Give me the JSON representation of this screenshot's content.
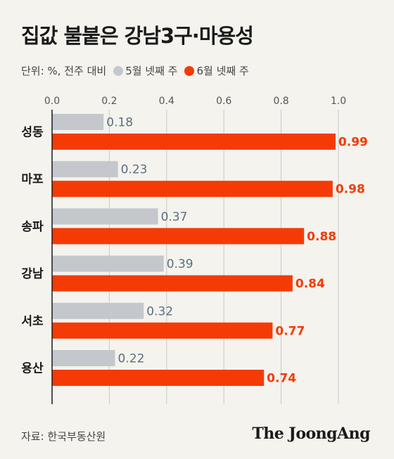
{
  "title": "집값 불붙은 강남3구·마용성",
  "legend": {
    "unit": "단위: %, 전주 대비",
    "series_a": "5월 넷째 주",
    "series_b": "6월 넷째 주"
  },
  "colors": {
    "series_a": "#c4c8cc",
    "series_b": "#f43b06",
    "label_a": "#5b6e7d",
    "label_b": "#f43b06",
    "axis": "#1a1a1a",
    "grid": "#c9c9c9"
  },
  "chart_data": {
    "type": "bar",
    "orientation": "horizontal",
    "categories": [
      "성동",
      "마포",
      "송파",
      "강남",
      "서초",
      "용산"
    ],
    "series": [
      {
        "name": "5월 넷째 주",
        "values": [
          0.18,
          0.23,
          0.37,
          0.39,
          0.32,
          0.22
        ],
        "labels": [
          "0.18",
          "0.23",
          "0.37",
          "0.39",
          "0.32",
          "0.22"
        ]
      },
      {
        "name": "6월 넷째 주",
        "values": [
          0.99,
          0.98,
          0.88,
          0.84,
          0.77,
          0.74
        ],
        "labels": [
          "0.99",
          "0.98",
          "0.88",
          "0.84",
          "0.77",
          "0.74"
        ]
      }
    ],
    "xlim": [
      0,
      1.0
    ],
    "xticks": [
      "0.0",
      "0.2",
      "0.4",
      "0.6",
      "0.8",
      "1.0"
    ],
    "xtick_values": [
      0,
      0.2,
      0.4,
      0.6,
      0.8,
      1.0
    ],
    "grid": true,
    "legend_position": "top-left"
  },
  "footer": {
    "source": "자료: 한국부동산원",
    "logo": "The JoongAng"
  }
}
